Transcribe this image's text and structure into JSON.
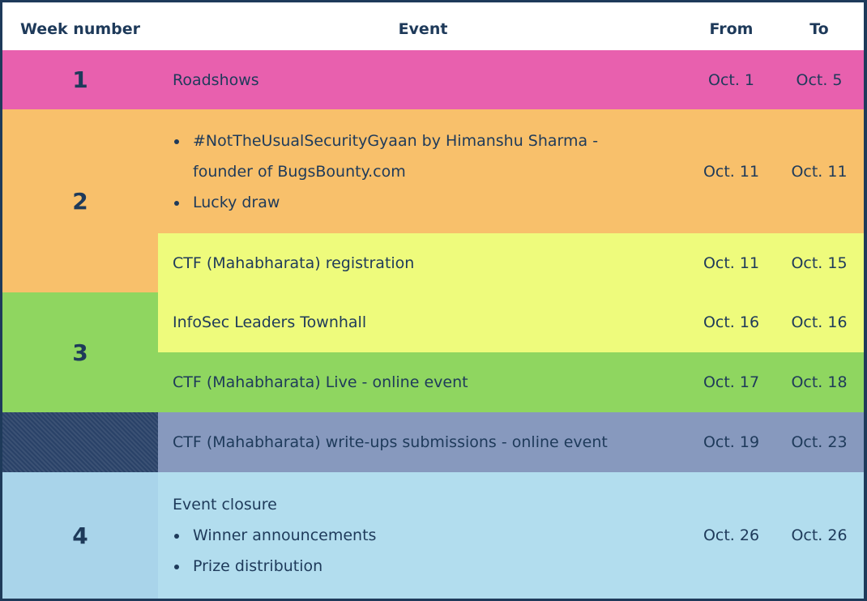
{
  "headers": {
    "week": "Week number",
    "event": "Event",
    "from": "From",
    "to": "To"
  },
  "colors": {
    "pink": "#e860ae",
    "orange": "#f8c06b",
    "yellow": "#eefb7c",
    "green": "#8fd660",
    "slate": "#8799be",
    "navy_hatch": "#2a4268",
    "blue": "#b2ddee",
    "light_blue_week": "#a9d4ea",
    "text": "#1e3a5a"
  },
  "weeks": [
    "1",
    "2",
    "3",
    "4"
  ],
  "rows": [
    {
      "event": "Roadshows",
      "from": "Oct. 1",
      "to": "Oct. 5"
    },
    {
      "bullets": [
        "#NotTheUsualSecurityGyaan by Himanshu Sharma -",
        "founder of BugsBounty.com",
        "Lucky draw"
      ],
      "from": "Oct. 11",
      "to": "Oct. 11"
    },
    {
      "event": "CTF (Mahabharata) registration",
      "from": "Oct. 11",
      "to": "Oct. 15"
    },
    {
      "event": "InfoSec Leaders Townhall",
      "from": "Oct. 16",
      "to": "Oct. 16"
    },
    {
      "event": "CTF (Mahabharata) Live - online event",
      "from": "Oct. 17",
      "to": "Oct. 18"
    },
    {
      "event": "CTF (Mahabharata) write-ups submissions - online event",
      "from": "Oct. 19",
      "to": "Oct. 23"
    },
    {
      "event": "Event closure",
      "bullets": [
        "Winner announcements",
        "Prize distribution"
      ],
      "from": "Oct. 26",
      "to": "Oct. 26"
    }
  ]
}
